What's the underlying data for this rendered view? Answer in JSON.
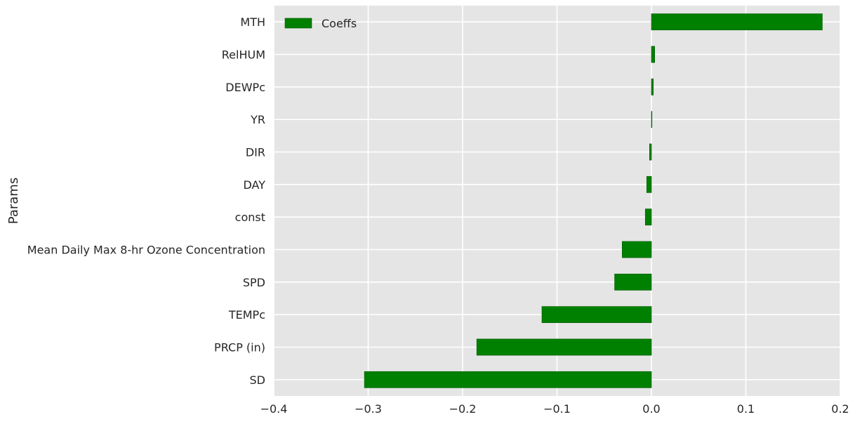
{
  "chart_data": {
    "type": "bar",
    "orientation": "horizontal",
    "ylabel": "Params",
    "xlabel": "",
    "xlim": [
      -0.4,
      0.2
    ],
    "xticks": [
      -0.4,
      -0.3,
      -0.2,
      -0.1,
      0.0,
      0.1,
      0.2
    ],
    "xtick_labels": [
      "−0.4",
      "−0.3",
      "−0.2",
      "−0.1",
      "0.0",
      "0.1",
      "0.2"
    ],
    "grid": true,
    "legend_position": "top-left",
    "categories": [
      "MTH",
      "RelHUM",
      "DEWPc",
      "YR",
      "DIR",
      "DAY",
      "const",
      "Mean Daily Max 8-hr Ozone Concentration",
      "SPD",
      "TEMPc",
      "PRCP (in)",
      "SD"
    ],
    "series": [
      {
        "name": "Coeffs",
        "color": "#008000",
        "values": [
          0.181,
          0.0035,
          0.002,
          0.0005,
          -0.002,
          -0.005,
          -0.0065,
          -0.031,
          -0.039,
          -0.116,
          -0.185,
          -0.304
        ]
      }
    ],
    "colors": {
      "background": "#e5e5e5",
      "grid": "#ffffff",
      "bar": "#008000",
      "bar_edge": "#005a00"
    }
  }
}
